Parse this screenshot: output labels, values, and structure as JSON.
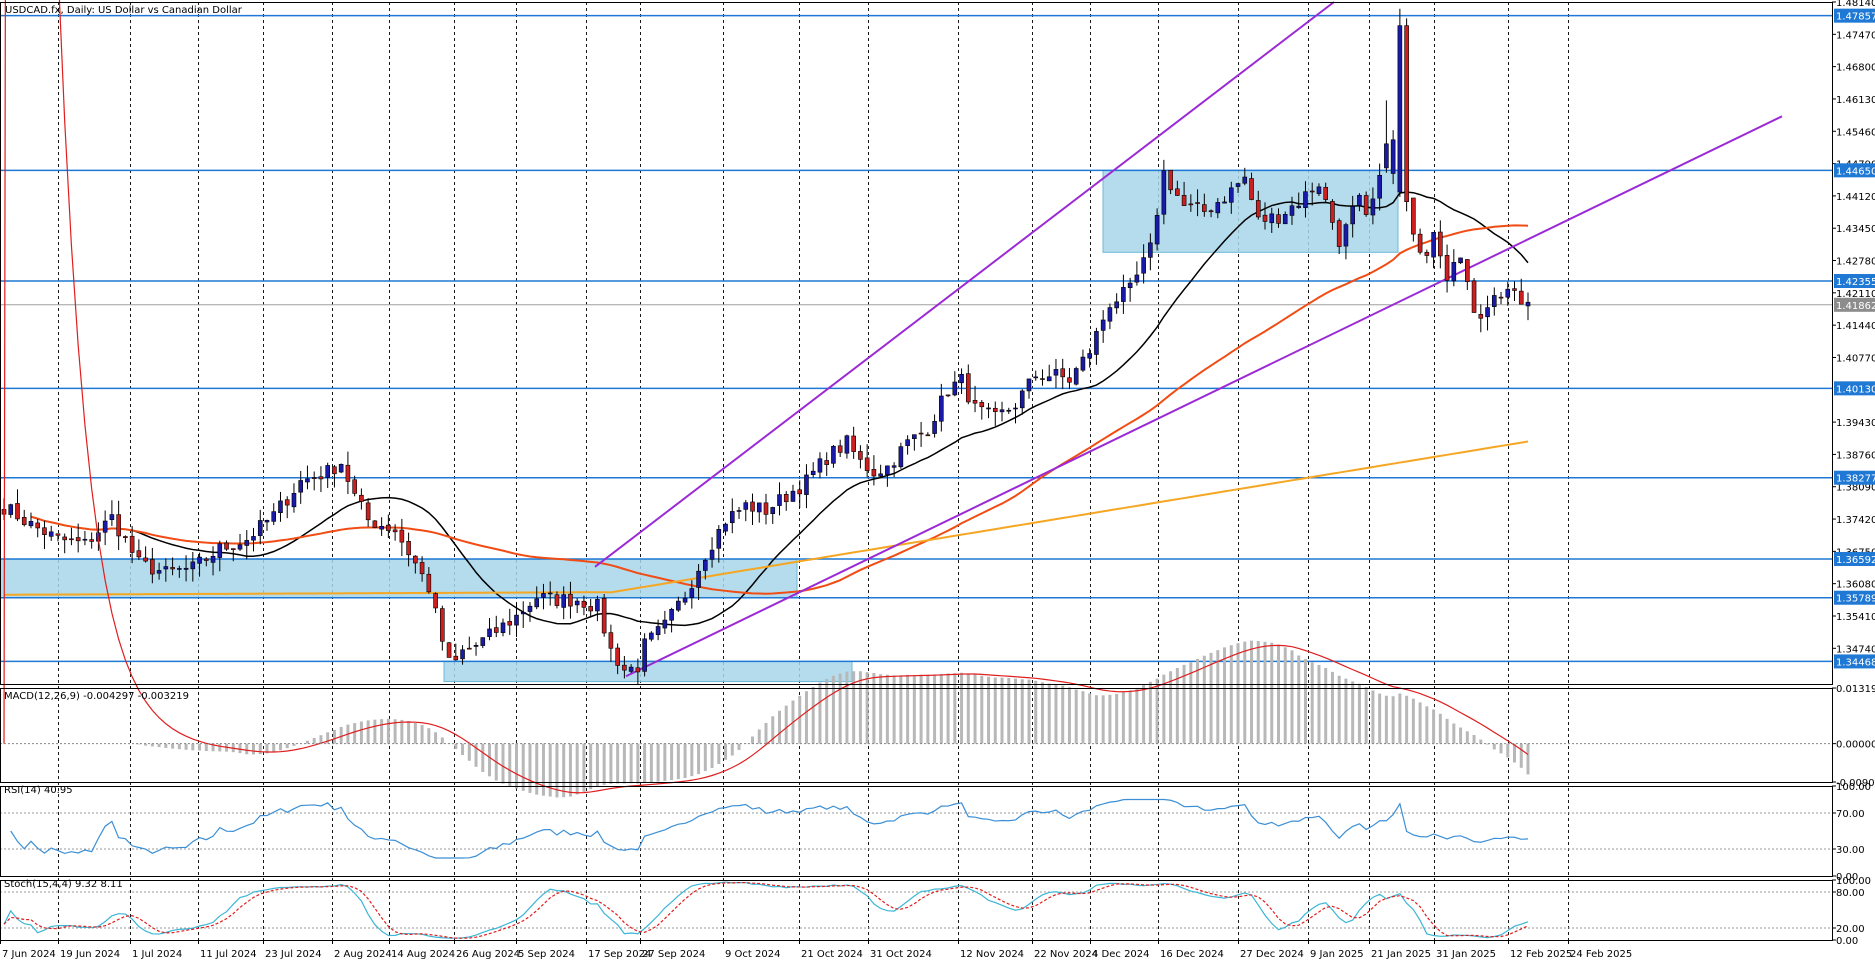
{
  "chart_data": {
    "type": "candlestick",
    "symbol_label": "USDCAD.fx, Daily:  US Dollar vs Canadian Dollar",
    "price_axis": {
      "ticks": [
        "1.48140",
        "1.47470",
        "1.46800",
        "1.46130",
        "1.45460",
        "1.44790",
        "1.44120",
        "1.43450",
        "1.42780",
        "1.42110",
        "1.41440",
        "1.40770",
        "1.39430",
        "1.38760",
        "1.38090",
        "1.37420",
        "1.36750",
        "1.36080",
        "1.35410",
        "1.34740"
      ],
      "ylim": [
        1.34,
        1.4814
      ]
    },
    "level_labels": [
      "1.47857",
      "1.44650",
      "1.42355",
      "1.40130",
      "1.38277",
      "1.36592",
      "1.35789",
      "1.34468"
    ],
    "last_price_label": "1.41862",
    "date_labels": [
      "7 Jun 2024",
      "19 Jun 2024",
      "1 Jul 2024",
      "11 Jul 2024",
      "23 Jul 2024",
      "2 Aug 2024",
      "14 Aug 2024",
      "26 Aug 2024",
      "5 Sep 2024",
      "17 Sep 2024",
      "27 Sep 2024",
      "9 Oct 2024",
      "21 Oct 2024",
      "31 Oct 2024",
      "12 Nov 2024",
      "22 Nov 2024",
      "4 Dec 2024",
      "16 Dec 2024",
      "27 Dec 2024",
      "9 Jan 2025",
      "21 Jan 2025",
      "31 Jan 2025",
      "12 Feb 2025",
      "24 Feb 2025"
    ],
    "horizontal_levels": [
      1.47857,
      1.4465,
      1.42355,
      1.4013,
      1.38277,
      1.36592,
      1.35789,
      1.34468
    ],
    "zones": [
      {
        "from_day": 0,
        "to_day": 95,
        "low": 1.3579,
        "high": 1.3659
      },
      {
        "from_day": 53,
        "to_day": 103,
        "low": 1.3405,
        "high": 1.3447
      },
      {
        "from_day": 132,
        "to_day": 167,
        "low": 1.4295,
        "high": 1.4465
      }
    ],
    "channel": {
      "upper": {
        "from": [
          71,
          1.3643
        ],
        "to": [
          160,
          1.4814
        ]
      },
      "lower": {
        "from": [
          74,
          1.3416
        ],
        "to": [
          213,
          1.4577
        ]
      }
    },
    "macd": {
      "label": "MACD(12,26,9) -0.004297 -0.003219",
      "ticks": [
        "0.013190",
        "0.000000",
        "-0.009099"
      ],
      "ylim": [
        -0.0091,
        0.0132
      ]
    },
    "rsi": {
      "label": "RSI(14) 40.95",
      "ticks": [
        "100.00",
        "70.00",
        "30.00",
        "0.00"
      ],
      "ylim": [
        0,
        100
      ]
    },
    "stoch": {
      "label": "Stoch(15,4,4) 9.32 8.11",
      "ticks": [
        "100.00",
        "80.00",
        "20.00",
        "0.00"
      ],
      "ylim": [
        0,
        100
      ]
    },
    "colors": {
      "bull": "#1a1aa8",
      "bear": "#cc1f1f",
      "level": "#1e78d4",
      "zone": "#a7d6ea",
      "channel": "#9b2ad6",
      "ma_fast": "#000000",
      "ma_mid": "#f04c14",
      "ma_slow": "#f5a623",
      "macd_hist": "#b8b8b8",
      "macd_signal": "#e01e1e",
      "rsi": "#3b8fd6",
      "stoch_main": "#3bb6d6",
      "stoch_signal": "#e01e1e"
    }
  }
}
